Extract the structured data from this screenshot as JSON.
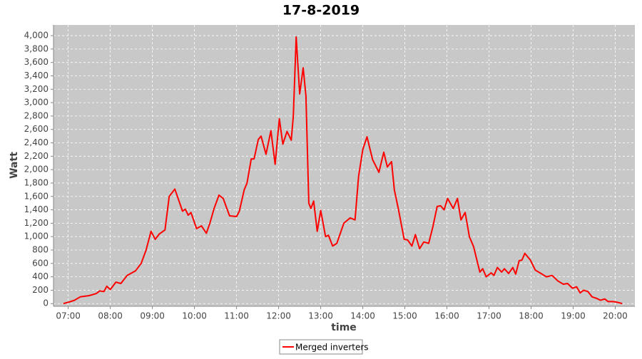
{
  "chart_data": {
    "type": "line",
    "title": "17-8-2019",
    "x_label": "time",
    "y_label": "Watt",
    "x": [
      "06:53",
      "07:00",
      "07:09",
      "07:17",
      "07:30",
      "07:40",
      "07:45",
      "07:51",
      "07:55",
      "08:00",
      "08:08",
      "08:15",
      "08:24",
      "08:36",
      "08:44",
      "08:51",
      "08:58",
      "09:04",
      "09:10",
      "09:18",
      "09:24",
      "09:32",
      "09:37",
      "09:43",
      "09:47",
      "09:51",
      "09:55",
      "10:03",
      "10:10",
      "10:17",
      "10:22",
      "10:28",
      "10:35",
      "10:41",
      "10:50",
      "11:00",
      "11:04",
      "11:11",
      "11:15",
      "11:21",
      "11:25",
      "11:31",
      "11:35",
      "11:42",
      "11:49",
      "11:55",
      "12:01",
      "12:06",
      "12:12",
      "12:18",
      "12:21",
      "12:25",
      "12:30",
      "12:35",
      "12:39",
      "12:43",
      "12:46",
      "12:50",
      "12:55",
      "13:00",
      "13:07",
      "13:11",
      "13:17",
      "13:23",
      "13:33",
      "13:42",
      "13:49",
      "13:54",
      "14:00",
      "14:06",
      "14:14",
      "14:23",
      "14:30",
      "14:35",
      "14:41",
      "14:45",
      "14:51",
      "14:59",
      "15:04",
      "15:10",
      "15:15",
      "15:21",
      "15:27",
      "15:34",
      "15:40",
      "15:46",
      "15:51",
      "15:56",
      "16:01",
      "16:09",
      "16:15",
      "16:20",
      "16:26",
      "16:32",
      "16:38",
      "16:47",
      "16:51",
      "16:56",
      "17:03",
      "17:07",
      "17:12",
      "17:18",
      "17:22",
      "17:28",
      "17:34",
      "17:38",
      "17:43",
      "17:47",
      "17:51",
      "17:59",
      "18:06",
      "18:14",
      "18:22",
      "18:30",
      "18:38",
      "18:46",
      "18:52",
      "18:59",
      "19:05",
      "19:10",
      "19:15",
      "19:21",
      "19:27",
      "19:33",
      "19:39",
      "19:45",
      "19:50",
      "19:57",
      "20:03",
      "20:10"
    ],
    "series": [
      {
        "name": "Merged inverters",
        "color": "#ff0000",
        "values": [
          0,
          20,
          50,
          100,
          120,
          150,
          190,
          180,
          260,
          210,
          320,
          300,
          420,
          490,
          600,
          800,
          1080,
          960,
          1040,
          1100,
          1600,
          1710,
          1560,
          1380,
          1410,
          1320,
          1360,
          1120,
          1160,
          1050,
          1200,
          1420,
          1620,
          1570,
          1310,
          1300,
          1380,
          1700,
          1800,
          2160,
          2160,
          2450,
          2500,
          2230,
          2580,
          2080,
          2760,
          2380,
          2570,
          2440,
          2800,
          3980,
          3130,
          3520,
          3100,
          1500,
          1420,
          1530,
          1080,
          1390,
          1000,
          1020,
          860,
          900,
          1200,
          1280,
          1250,
          1900,
          2300,
          2490,
          2150,
          1960,
          2260,
          2040,
          2120,
          1700,
          1400,
          960,
          950,
          860,
          1030,
          820,
          920,
          900,
          1150,
          1450,
          1460,
          1400,
          1570,
          1420,
          1570,
          1250,
          1360,
          1000,
          850,
          470,
          520,
          400,
          460,
          420,
          540,
          470,
          520,
          450,
          540,
          440,
          640,
          650,
          750,
          650,
          500,
          450,
          400,
          420,
          340,
          290,
          300,
          230,
          250,
          160,
          200,
          180,
          100,
          80,
          50,
          70,
          30,
          30,
          20,
          0
        ]
      }
    ],
    "xlim": [
      "06:39",
      "20:28"
    ],
    "xticks": [
      "07:00",
      "08:00",
      "09:00",
      "10:00",
      "11:00",
      "12:00",
      "13:00",
      "14:00",
      "15:00",
      "16:00",
      "17:00",
      "18:00",
      "19:00",
      "20:00"
    ],
    "ylim": [
      -40,
      4160
    ],
    "yticks": [
      0,
      200,
      400,
      600,
      800,
      {
        "value": 1000,
        "label": "1,000"
      },
      {
        "value": 1200,
        "label": "1,200"
      },
      {
        "value": 1400,
        "label": "1,400"
      },
      {
        "value": 1600,
        "label": "1,600"
      },
      {
        "value": 1800,
        "label": "1,800"
      },
      {
        "value": 2000,
        "label": "2,000"
      },
      {
        "value": 2200,
        "label": "2,200"
      },
      {
        "value": 2400,
        "label": "2,400"
      },
      {
        "value": 2600,
        "label": "2,600"
      },
      {
        "value": 2800,
        "label": "2,800"
      },
      {
        "value": 3000,
        "label": "3,000"
      },
      {
        "value": 3200,
        "label": "3,200"
      },
      {
        "value": 3400,
        "label": "3,400"
      },
      {
        "value": 3600,
        "label": "3,600"
      },
      {
        "value": 3800,
        "label": "3,800"
      },
      {
        "value": 4000,
        "label": "4,000"
      }
    ],
    "grid": true,
    "legend": "bottom"
  }
}
